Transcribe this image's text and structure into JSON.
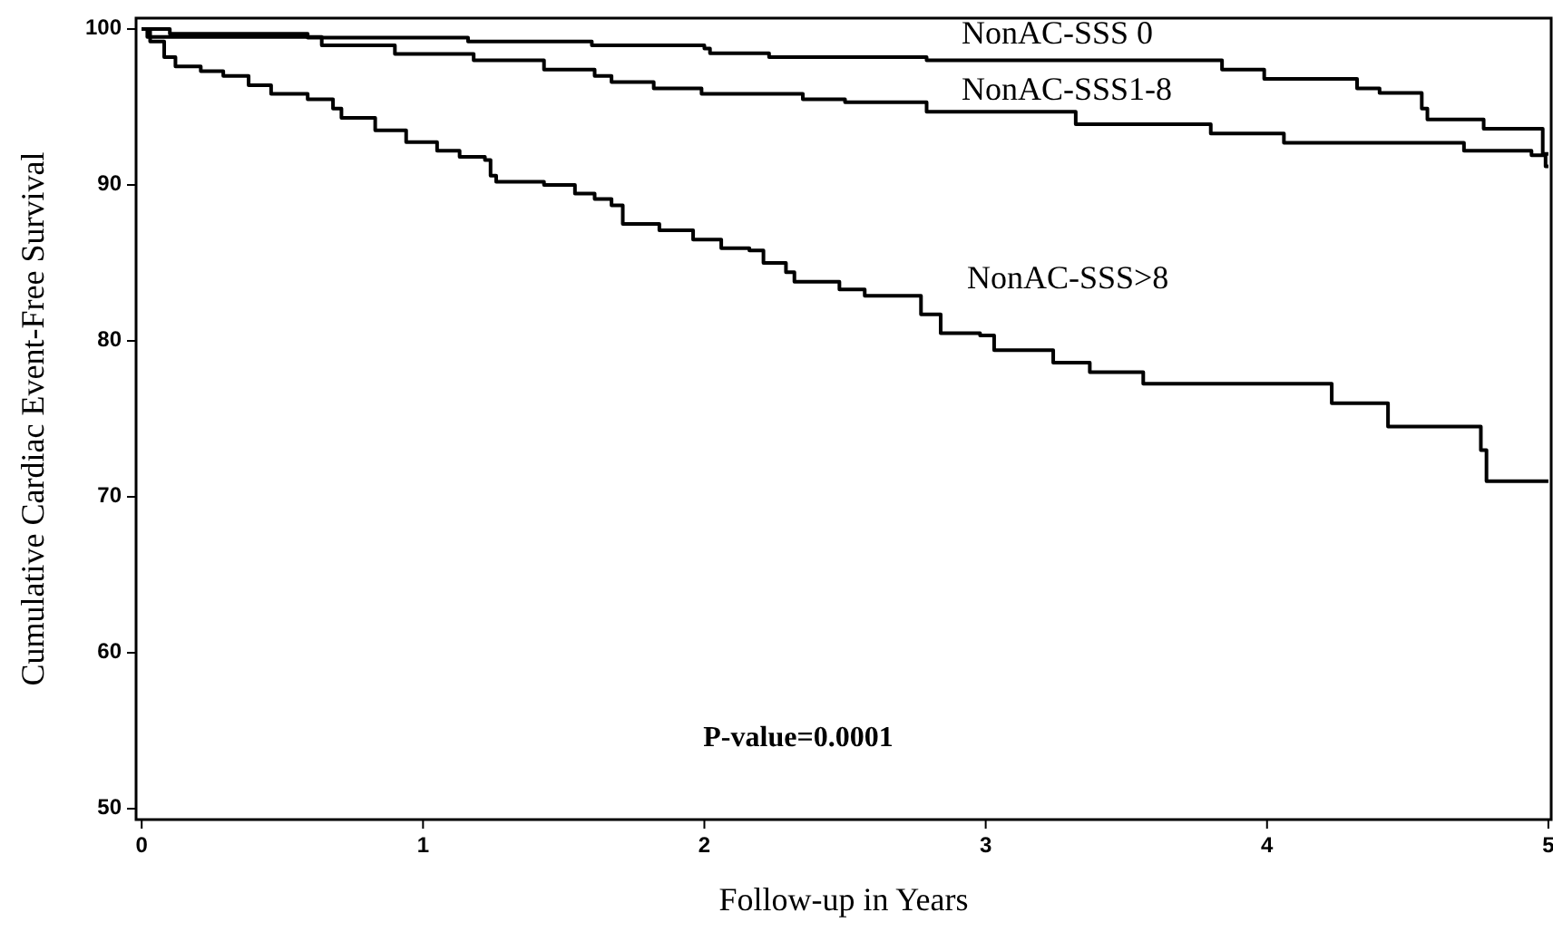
{
  "chart_data": {
    "type": "step",
    "xlabel": "Follow-up in Years",
    "ylabel": "Cumulative Cardiac Event-Free Survival",
    "xlim": [
      -0.02,
      5.01
    ],
    "ylim": [
      49.3,
      100.7
    ],
    "xticks": [
      0,
      1,
      2,
      3,
      4,
      5
    ],
    "yticks": [
      50,
      60,
      70,
      80,
      90,
      100
    ],
    "grid": false,
    "legend": false,
    "marker": "none",
    "line_style": "solid",
    "annotations": [
      "P-value=0.0001"
    ],
    "series": [
      {
        "name": "NonAC-SSS 0",
        "color": "#000000",
        "x": [
          0,
          0.1,
          0.59,
          1.16,
          1.6,
          2.0,
          2.02,
          2.23,
          2.79,
          3.84,
          3.99,
          4.32,
          4.4,
          4.55,
          4.57,
          4.77,
          4.98,
          5
        ],
        "values": [
          100,
          99.7,
          99.45,
          99.2,
          98.95,
          98.75,
          98.45,
          98.2,
          98.0,
          97.4,
          96.8,
          96.2,
          95.9,
          94.9,
          94.2,
          93.6,
          92.0,
          92.0
        ]
      },
      {
        "name": "NonAC-SSS1-8",
        "color": "#000000",
        "x": [
          0,
          0.02,
          0.64,
          0.9,
          1.18,
          1.43,
          1.61,
          1.67,
          1.82,
          1.99,
          2.35,
          2.5,
          2.79,
          3.32,
          3.8,
          4.06,
          4.7,
          4.94,
          4.99,
          5
        ],
        "values": [
          100,
          99.5,
          98.95,
          98.4,
          98.0,
          97.4,
          97.0,
          96.6,
          96.2,
          95.85,
          95.5,
          95.3,
          94.7,
          93.9,
          93.3,
          92.7,
          92.2,
          91.9,
          91.2,
          91.2
        ]
      },
      {
        "name": "NonAC-SSS>8",
        "color": "#000000",
        "x": [
          0,
          0.03,
          0.08,
          0.12,
          0.21,
          0.29,
          0.38,
          0.46,
          0.59,
          0.68,
          0.71,
          0.83,
          0.94,
          1.05,
          1.13,
          1.22,
          1.24,
          1.26,
          1.43,
          1.54,
          1.61,
          1.67,
          1.71,
          1.84,
          1.96,
          2.06,
          2.16,
          2.21,
          2.29,
          2.32,
          2.48,
          2.57,
          2.77,
          2.84,
          2.98,
          3.03,
          3.24,
          3.37,
          3.56,
          4.23,
          4.43,
          4.76,
          4.78,
          5
        ],
        "values": [
          100,
          99.2,
          98.2,
          97.6,
          97.3,
          97.0,
          96.4,
          95.85,
          95.5,
          94.9,
          94.3,
          93.5,
          92.75,
          92.2,
          91.8,
          91.6,
          90.6,
          90.2,
          90.0,
          89.45,
          89.1,
          88.7,
          87.5,
          87.1,
          86.5,
          85.95,
          85.8,
          85.0,
          84.4,
          83.8,
          83.3,
          82.9,
          81.7,
          80.5,
          80.35,
          79.4,
          78.6,
          78.0,
          77.25,
          76.0,
          74.5,
          73.0,
          71.0,
          71.0
        ]
      }
    ]
  }
}
